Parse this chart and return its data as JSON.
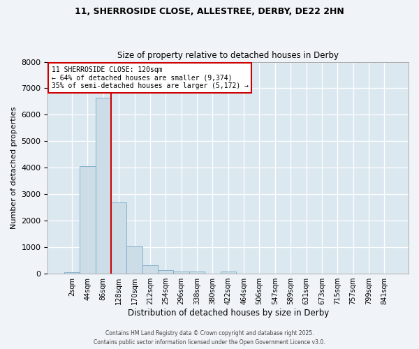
{
  "title_line1": "11, SHERROSIDE CLOSE, ALLESTREE, DERBY, DE22 2HN",
  "title_line2": "Size of property relative to detached houses in Derby",
  "xlabel": "Distribution of detached houses by size in Derby",
  "ylabel": "Number of detached properties",
  "bar_labels": [
    "2sqm",
    "44sqm",
    "86sqm",
    "128sqm",
    "170sqm",
    "212sqm",
    "254sqm",
    "296sqm",
    "338sqm",
    "380sqm",
    "422sqm",
    "464sqm",
    "506sqm",
    "547sqm",
    "589sqm",
    "631sqm",
    "673sqm",
    "715sqm",
    "757sqm",
    "799sqm",
    "841sqm"
  ],
  "bar_values": [
    50,
    4050,
    6650,
    2700,
    1020,
    330,
    130,
    80,
    80,
    0,
    80,
    0,
    0,
    0,
    0,
    0,
    0,
    0,
    0,
    0,
    0
  ],
  "bar_color": "#ccdde8",
  "bar_edgecolor": "#7aaac8",
  "ylim": [
    0,
    8000
  ],
  "yticks": [
    0,
    1000,
    2000,
    3000,
    4000,
    5000,
    6000,
    7000,
    8000
  ],
  "vline_x_bin": 2.5,
  "vline_color": "#cc0000",
  "annotation_text": "11 SHERROSIDE CLOSE: 120sqm\n← 64% of detached houses are smaller (9,374)\n35% of semi-detached houses are larger (5,172) →",
  "annotation_box_color": "#cc0000",
  "background_color": "#dce8f0",
  "grid_color": "#ffffff",
  "footer_line1": "Contains HM Land Registry data © Crown copyright and database right 2025.",
  "footer_line2": "Contains public sector information licensed under the Open Government Licence v3.0.",
  "fig_facecolor": "#f0f4f8"
}
